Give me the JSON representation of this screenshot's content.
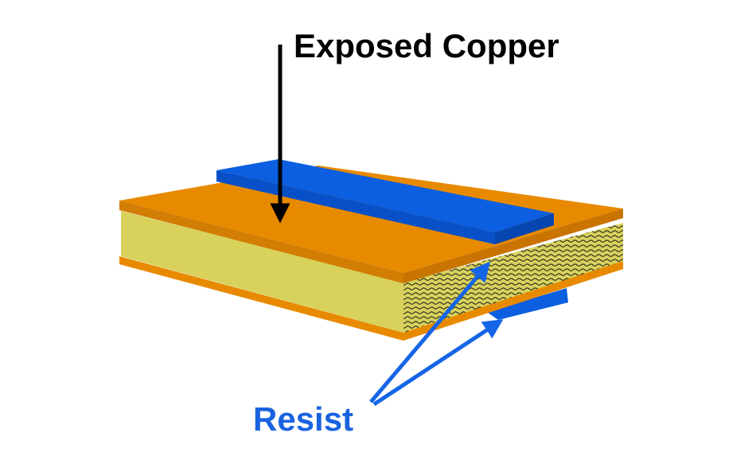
{
  "labels": {
    "exposed_copper": "Exposed Copper",
    "resist": "Resist"
  },
  "colors": {
    "copper_top": "#e88a00",
    "copper_edge": "#cf7a05",
    "resist_top": "#0b5fe0",
    "resist_side": "#0646b0",
    "substrate_face": "#d8d25c",
    "substrate_texture": "#1a1a1a",
    "black_arrow": "#000000",
    "blue_arrow": "#1565e6",
    "blue_text": "#1a63e0"
  }
}
